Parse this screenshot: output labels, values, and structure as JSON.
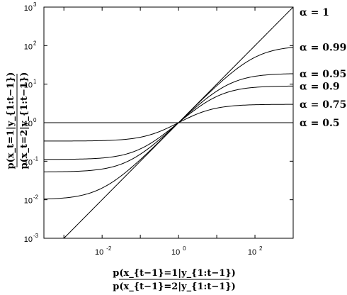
{
  "chart_data": {
    "type": "line",
    "xscale": "log",
    "yscale": "log",
    "xlim": [
      0.0003,
      1000
    ],
    "ylim": [
      0.001,
      1000
    ],
    "grid": false,
    "xticks": [
      {
        "base": "10",
        "exp": "-2",
        "value": 0.01
      },
      {
        "base": "10",
        "exp": "0",
        "value": 1
      },
      {
        "base": "10",
        "exp": "2",
        "value": 100
      }
    ],
    "yticks": [
      {
        "base": "10",
        "exp": "-3",
        "value": 0.001
      },
      {
        "base": "10",
        "exp": "-2",
        "value": 0.01
      },
      {
        "base": "10",
        "exp": "-1",
        "value": 0.1
      },
      {
        "base": "10",
        "exp": "0",
        "value": 1
      },
      {
        "base": "10",
        "exp": "1",
        "value": 10
      },
      {
        "base": "10",
        "exp": "2",
        "value": 100
      },
      {
        "base": "10",
        "exp": "3",
        "value": 1000
      }
    ],
    "xlabel": {
      "numerator": "p(x_{t−1}=1|y_{1:t−1})",
      "denominator": "p(x_{t−1}=2|y_{1:t−1})"
    },
    "ylabel": {
      "numerator": "p(x_t=1|y_{1:t−1})",
      "denominator": "p(x_t=2|y_{1:t−1})"
    },
    "series": [
      {
        "name": "α = 1",
        "alpha": 1,
        "x": [
          0.0003,
          0.001,
          0.01,
          0.1,
          1,
          10,
          100,
          1000
        ],
        "y": [
          0.0003,
          0.001,
          0.01,
          0.1,
          1,
          10,
          100,
          1000
        ]
      },
      {
        "name": "α = 0.99",
        "alpha": 0.99,
        "x": [
          0.0003,
          0.001,
          0.01,
          0.1,
          1,
          10,
          100,
          1000
        ],
        "y": [
          0.0103,
          0.011,
          0.0199,
          0.109,
          1,
          9.18,
          50.3,
          90.9
        ]
      },
      {
        "name": "α = 0.95",
        "alpha": 0.95,
        "x": [
          0.0003,
          0.001,
          0.01,
          0.1,
          1,
          10,
          100,
          1000
        ],
        "y": [
          0.0529,
          0.0536,
          0.0619,
          0.143,
          1,
          6.98,
          16.2,
          18.6
        ]
      },
      {
        "name": "α = 0.9",
        "alpha": 0.9,
        "x": [
          0.0003,
          0.001,
          0.01,
          0.1,
          1,
          10,
          100,
          1000
        ],
        "y": [
          0.1113,
          0.112,
          0.12,
          0.191,
          1,
          5.24,
          8.33,
          8.9
        ]
      },
      {
        "name": "α = 0.75",
        "alpha": 0.75,
        "x": [
          0.0003,
          0.001,
          0.01,
          0.1,
          1,
          10,
          100,
          1000
        ],
        "y": [
          0.3336,
          0.334,
          0.342,
          0.4,
          1,
          2.5,
          2.93,
          2.99
        ]
      },
      {
        "name": "α = 0.5",
        "alpha": 0.5,
        "x": [
          0.0003,
          0.001,
          0.01,
          0.1,
          1,
          10,
          100,
          1000
        ],
        "y": [
          1,
          1,
          1,
          1,
          1,
          1,
          1,
          1
        ]
      }
    ]
  }
}
